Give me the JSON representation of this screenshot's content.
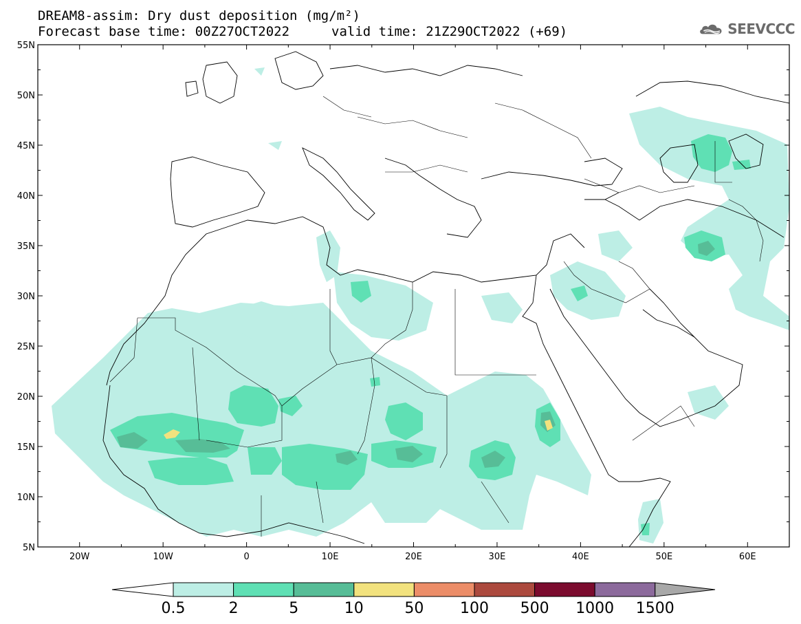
{
  "header": {
    "title": "DREAM8-assim: Dry dust deposition (mg/m²)",
    "base_time": "Forecast base time: 00Z27OCT2022",
    "valid_time": "valid time: 21Z29OCT2022 (+69)"
  },
  "logo": {
    "text": "SEEVCCC",
    "icon": "cloud-logo-icon"
  },
  "map": {
    "lon_range": [
      -25,
      65
    ],
    "lat_range": [
      5,
      55
    ],
    "lat_labels": [
      "55N",
      "50N",
      "45N",
      "40N",
      "35N",
      "30N",
      "25N",
      "20N",
      "15N",
      "10N",
      "5N"
    ],
    "lon_labels": [
      "20W",
      "10W",
      "0",
      "10E",
      "20E",
      "30E",
      "40E",
      "50E",
      "60E"
    ]
  },
  "colorbar": {
    "labels": [
      "0.5",
      "2",
      "5",
      "10",
      "50",
      "100",
      "500",
      "1000",
      "1500"
    ],
    "colors": [
      "#bdeee5",
      "#5fe0b4",
      "#57bd97",
      "#f2e27e",
      "#ec8d68",
      "#ac4a3e",
      "#7b0b2e",
      "#8c6a9c"
    ],
    "under_color": "#ffffff",
    "over_color": "#a8a8a8"
  },
  "chart_data": {
    "type": "heatmap",
    "title": "DREAM8-assim: Dry dust deposition (mg/m²)",
    "variable": "Dry dust deposition",
    "units": "mg/m²",
    "levels": [
      0.5,
      2,
      5,
      10,
      50,
      100,
      500,
      1000,
      1500
    ],
    "x_range": [
      -25,
      65
    ],
    "y_range": [
      5,
      55
    ],
    "dust_regions": [
      {
        "lon": -19,
        "lat": 19,
        "level": 0.5
      },
      {
        "lon": -12,
        "lat": 15,
        "level": 5
      },
      {
        "lon": -9.5,
        "lat": 16.3,
        "level": 10
      },
      {
        "lon": -1,
        "lat": 19,
        "level": 2
      },
      {
        "lon": 9,
        "lat": 13.5,
        "level": 2
      },
      {
        "lon": 19.5,
        "lat": 17.8,
        "level": 2
      },
      {
        "lon": 21,
        "lat": 14,
        "level": 5
      },
      {
        "lon": 31,
        "lat": 13.5,
        "level": 5
      },
      {
        "lon": 36.2,
        "lat": 15.5,
        "level": 10
      },
      {
        "lon": 55.5,
        "lat": 34.7,
        "level": 5
      },
      {
        "lon": 55,
        "lat": 45,
        "level": 2
      },
      {
        "lon": 14,
        "lat": 30.5,
        "level": 2
      },
      {
        "lon": 48,
        "lat": 8,
        "level": 2
      }
    ]
  }
}
